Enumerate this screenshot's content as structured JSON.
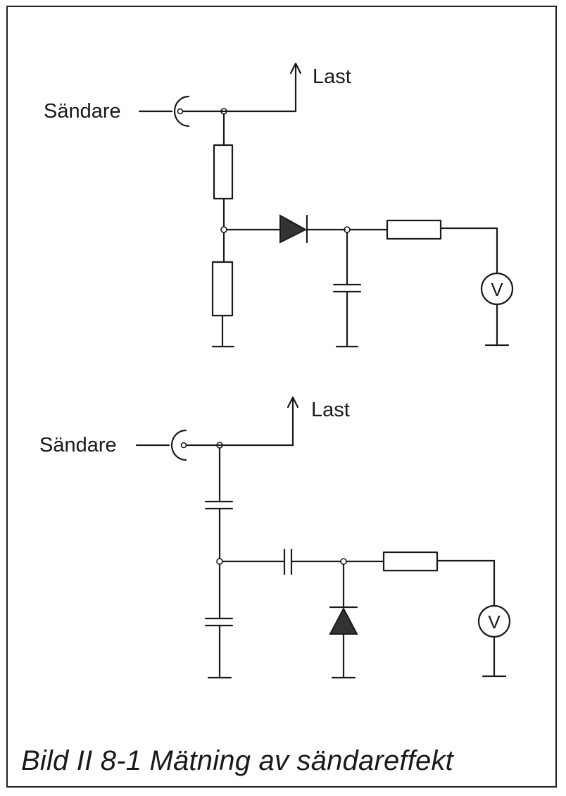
{
  "circuit_top": {
    "source_label": "Sändare",
    "load_label": "Last",
    "meter_label": "V"
  },
  "circuit_bottom": {
    "source_label": "Sändare",
    "load_label": "Last",
    "meter_label": "V"
  },
  "caption": "Bild II 8-1  Mätning av sändareffekt"
}
